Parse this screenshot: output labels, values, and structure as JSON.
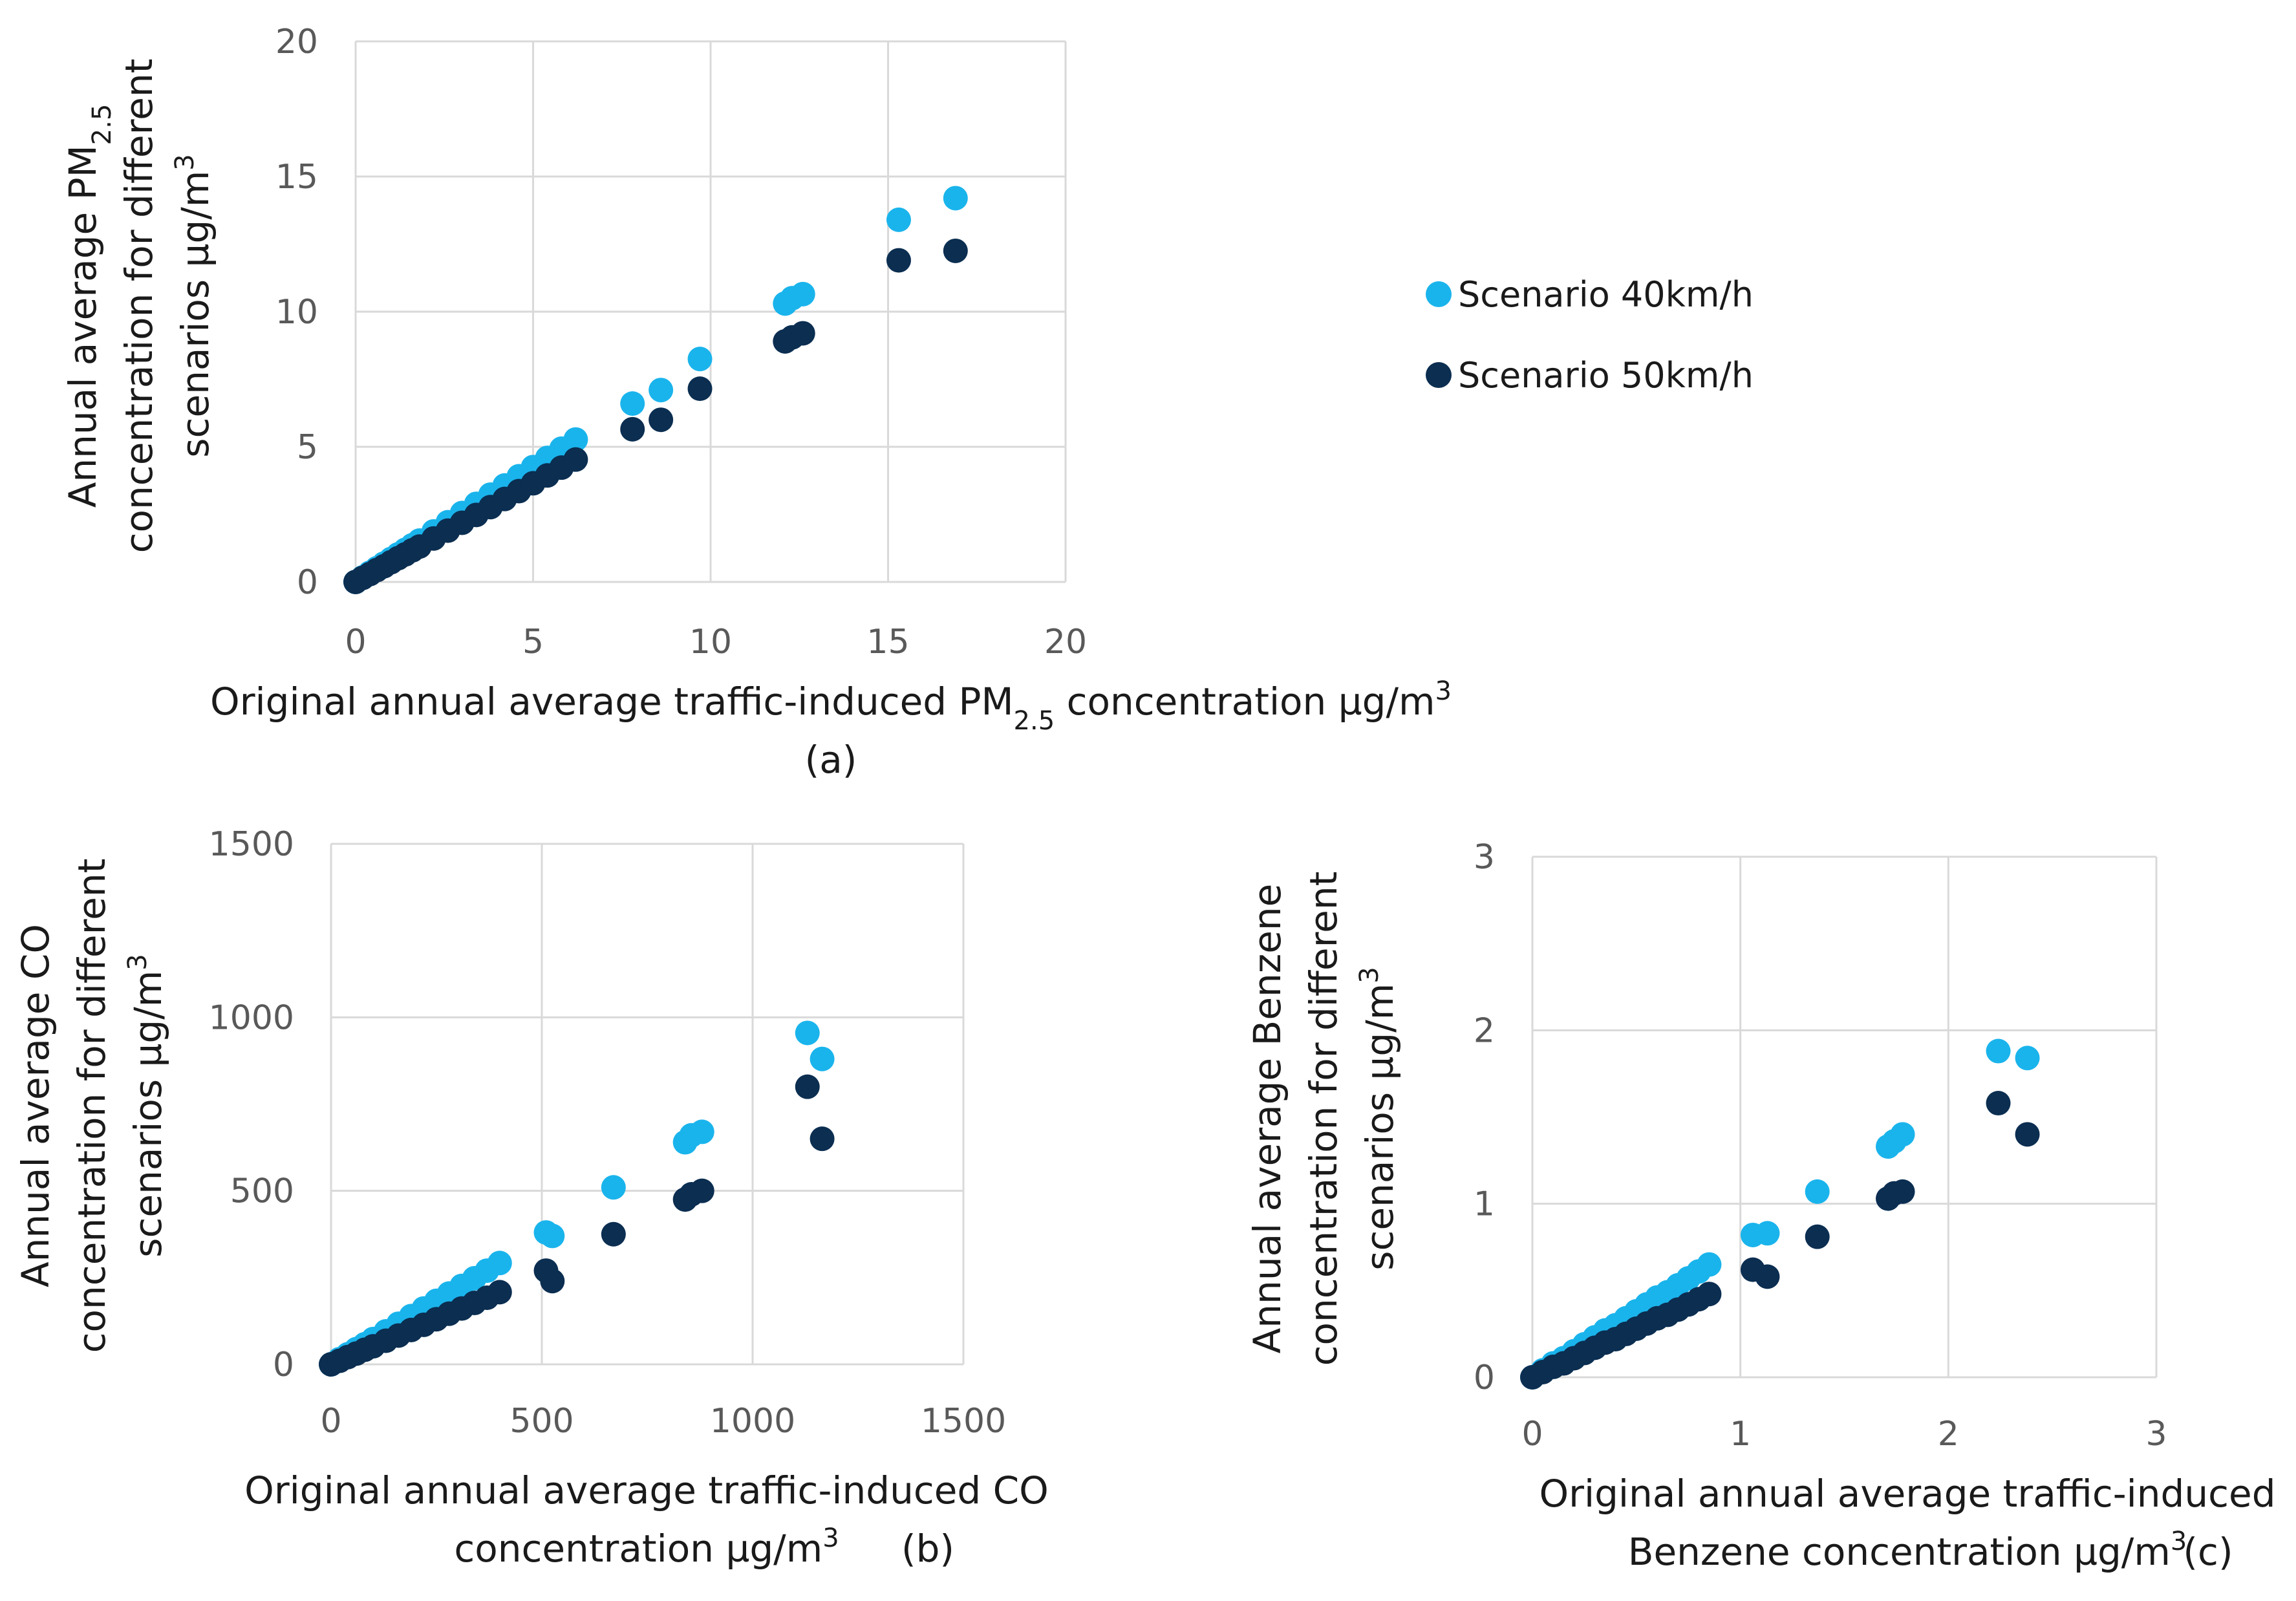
{
  "colors": {
    "s40": "#1ab4ec",
    "s50": "#0b2e51",
    "grid": "#d9d9d9",
    "tick": "#595959"
  },
  "legend": [
    {
      "key": "s40",
      "label": "Scenario 40km/h"
    },
    {
      "key": "s50",
      "label": "Scenario 50km/h"
    }
  ],
  "chart_data": [
    {
      "id": "a",
      "type": "scatter",
      "panel_label": "(a)",
      "xlim": [
        0,
        20
      ],
      "ylim": [
        0,
        20
      ],
      "xticks": [
        0,
        5,
        10,
        15,
        20
      ],
      "yticks": [
        0,
        5,
        10,
        15,
        20
      ],
      "xlabel_lines": [
        {
          "pre": "Original annual average traffic-induced PM",
          "sub": "2.5",
          "post": " concentration µg/m",
          "sup": "3"
        }
      ],
      "ylabel_lines": [
        {
          "pre": "Annual average PM",
          "sub": "2.5",
          "post": "",
          "sup": ""
        },
        {
          "pre": "concentration for different",
          "sub": "",
          "post": "",
          "sup": ""
        },
        {
          "pre": "scenarios µg/m",
          "sub": "",
          "post": "",
          "sup": "3"
        }
      ],
      "series": [
        {
          "name": "Scenario 40km/h",
          "key": "s40",
          "x": [
            0,
            0.2,
            0.4,
            0.6,
            0.8,
            1,
            1.2,
            1.4,
            1.6,
            1.8,
            2.2,
            2.6,
            3,
            3.4,
            3.8,
            4.2,
            4.6,
            5,
            5.4,
            5.8,
            6.2,
            7.8,
            8.6,
            9.7,
            12.1,
            12.3,
            12.6,
            15.3,
            16.9
          ],
          "y": [
            0,
            0.17,
            0.34,
            0.51,
            0.68,
            0.85,
            1.02,
            1.19,
            1.36,
            1.53,
            1.87,
            2.21,
            2.55,
            2.89,
            3.23,
            3.57,
            3.91,
            4.25,
            4.59,
            4.93,
            5.27,
            6.6,
            7.1,
            8.25,
            10.3,
            10.5,
            10.65,
            13.4,
            14.2
          ]
        },
        {
          "name": "Scenario 50km/h",
          "key": "s50",
          "x": [
            0,
            0.2,
            0.4,
            0.6,
            0.8,
            1,
            1.2,
            1.4,
            1.6,
            1.8,
            2.2,
            2.6,
            3,
            3.4,
            3.8,
            4.2,
            4.6,
            5,
            5.4,
            5.8,
            6.2,
            7.8,
            8.6,
            9.7,
            12.1,
            12.3,
            12.6,
            15.3,
            16.9
          ],
          "y": [
            0,
            0.15,
            0.29,
            0.44,
            0.58,
            0.73,
            0.88,
            1.02,
            1.17,
            1.31,
            1.61,
            1.9,
            2.19,
            2.48,
            2.77,
            3.07,
            3.36,
            3.65,
            3.94,
            4.23,
            4.53,
            5.65,
            6,
            7.15,
            8.9,
            9.05,
            9.2,
            11.9,
            12.25
          ]
        }
      ]
    },
    {
      "id": "b",
      "type": "scatter",
      "panel_label": "(b)",
      "xlim": [
        0,
        1500
      ],
      "ylim": [
        0,
        1500
      ],
      "xticks": [
        0,
        500,
        1000,
        1500
      ],
      "yticks": [
        0,
        500,
        1000,
        1500
      ],
      "xlabel_lines": [
        {
          "pre": "Original annual average traffic-induced CO",
          "sub": "",
          "post": "",
          "sup": ""
        },
        {
          "pre": "concentration µg/m",
          "sub": "",
          "post": "",
          "sup": "3"
        }
      ],
      "ylabel_lines": [
        {
          "pre": "Annual average CO",
          "sub": "",
          "post": "",
          "sup": ""
        },
        {
          "pre": "concentration for different",
          "sub": "",
          "post": "",
          "sup": ""
        },
        {
          "pre": "scenarios µg/m",
          "sub": "",
          "post": "",
          "sup": "3"
        }
      ],
      "series": [
        {
          "name": "Scenario 40km/h",
          "key": "s40",
          "x": [
            0,
            20,
            40,
            60,
            80,
            100,
            130,
            160,
            190,
            220,
            250,
            280,
            310,
            340,
            370,
            400,
            510,
            525,
            670,
            840,
            855,
            880,
            1130,
            1165
          ],
          "y": [
            0,
            15,
            29,
            44,
            58,
            73,
            95,
            117,
            139,
            161,
            183,
            204,
            226,
            248,
            270,
            292,
            380,
            370,
            510,
            640,
            660,
            670,
            955,
            880
          ]
        },
        {
          "name": "Scenario 50km/h",
          "key": "s50",
          "x": [
            0,
            20,
            40,
            60,
            80,
            100,
            130,
            160,
            190,
            220,
            250,
            280,
            310,
            340,
            370,
            400,
            510,
            525,
            670,
            840,
            855,
            880,
            1130,
            1165
          ],
          "y": [
            0,
            10,
            21,
            31,
            42,
            52,
            68,
            83,
            99,
            114,
            130,
            146,
            161,
            177,
            192,
            208,
            270,
            240,
            375,
            475,
            490,
            500,
            800,
            650
          ]
        }
      ]
    },
    {
      "id": "c",
      "type": "scatter",
      "panel_label": "(c)",
      "xlim": [
        0,
        3
      ],
      "ylim": [
        0,
        3
      ],
      "xticks": [
        0,
        1,
        2,
        3
      ],
      "yticks": [
        0,
        1,
        2,
        3
      ],
      "xlabel_lines": [
        {
          "pre": "Original annual average traffic-induced",
          "sub": "",
          "post": "",
          "sup": ""
        },
        {
          "pre": "Benzene concentration µg/m",
          "sub": "",
          "post": "",
          "sup": "3"
        }
      ],
      "ylabel_lines": [
        {
          "pre": "Annual average Benzene",
          "sub": "",
          "post": "",
          "sup": ""
        },
        {
          "pre": "concentration for different",
          "sub": "",
          "post": "",
          "sup": ""
        },
        {
          "pre": "scenarios µg/m",
          "sub": "",
          "post": "",
          "sup": "3"
        }
      ],
      "series": [
        {
          "name": "Scenario 40km/h",
          "key": "s40",
          "x": [
            0,
            0.05,
            0.1,
            0.15,
            0.2,
            0.25,
            0.3,
            0.35,
            0.4,
            0.45,
            0.5,
            0.55,
            0.6,
            0.65,
            0.7,
            0.75,
            0.8,
            0.85,
            1.06,
            1.13,
            1.37,
            1.71,
            1.74,
            1.78,
            2.24,
            2.38
          ],
          "y": [
            0,
            0.04,
            0.08,
            0.11,
            0.15,
            0.19,
            0.23,
            0.27,
            0.3,
            0.34,
            0.38,
            0.42,
            0.46,
            0.49,
            0.53,
            0.57,
            0.61,
            0.65,
            0.82,
            0.83,
            1.07,
            1.33,
            1.36,
            1.4,
            1.88,
            1.84
          ]
        },
        {
          "name": "Scenario 50km/h",
          "key": "s50",
          "x": [
            0,
            0.05,
            0.1,
            0.15,
            0.2,
            0.25,
            0.3,
            0.35,
            0.4,
            0.45,
            0.5,
            0.55,
            0.6,
            0.65,
            0.7,
            0.75,
            0.8,
            0.85,
            1.06,
            1.13,
            1.37,
            1.71,
            1.74,
            1.78,
            2.24,
            2.38
          ],
          "y": [
            0,
            0.03,
            0.06,
            0.08,
            0.11,
            0.14,
            0.17,
            0.2,
            0.22,
            0.25,
            0.28,
            0.31,
            0.34,
            0.36,
            0.39,
            0.42,
            0.45,
            0.48,
            0.62,
            0.58,
            0.81,
            1.03,
            1.06,
            1.07,
            1.58,
            1.4
          ]
        }
      ]
    }
  ]
}
